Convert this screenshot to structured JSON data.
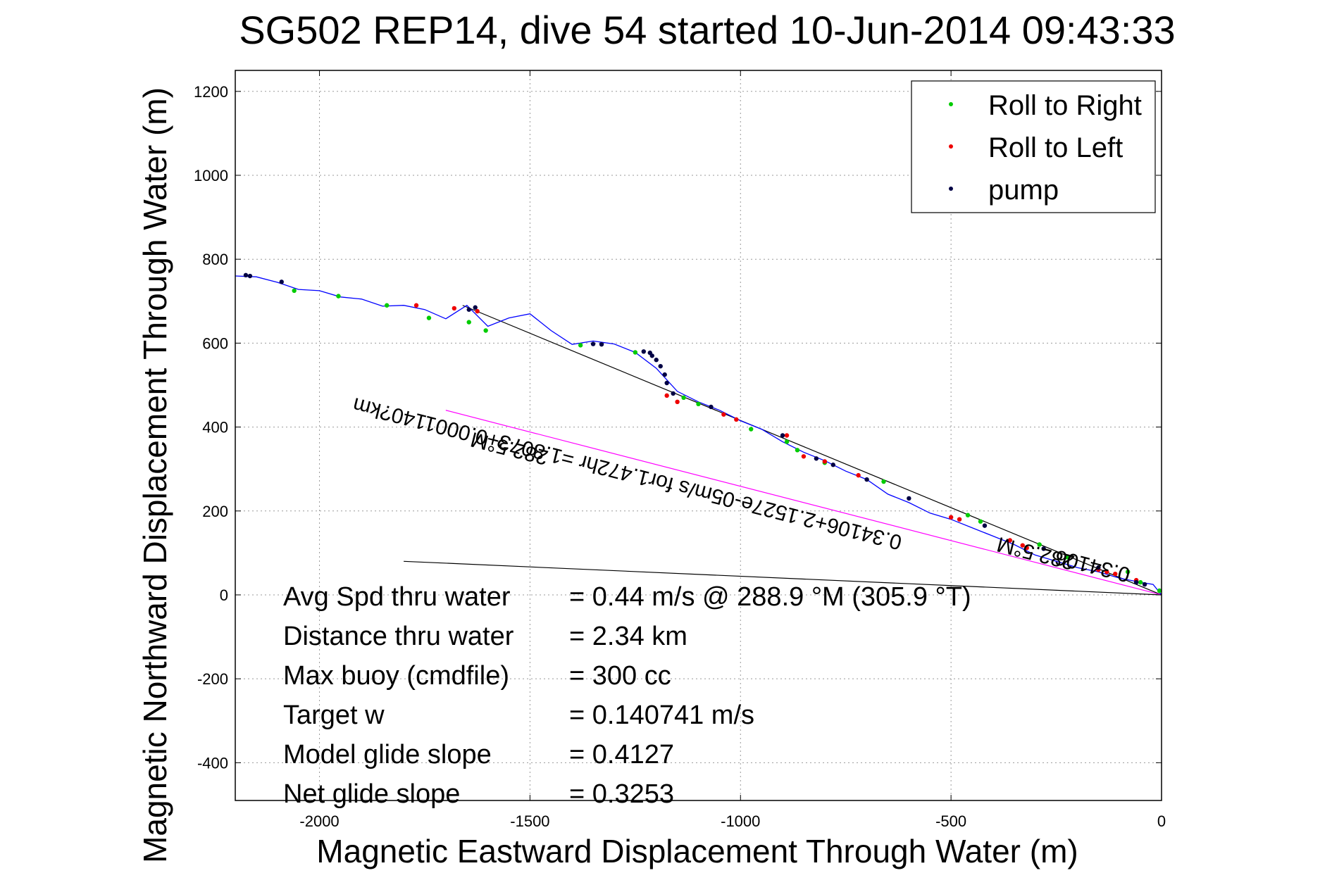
{
  "chart_data": {
    "type": "line",
    "title": "SG502 REP14, dive 54 started 10-Jun-2014 09:43:33",
    "xlabel": "Magnetic Eastward Displacement Through Water (m)",
    "ylabel": "Magnetic Northward Displacement Through Water (m)",
    "xlim": [
      -2200,
      0
    ],
    "ylim": [
      -490,
      1250
    ],
    "xticks": [
      -2000,
      -1500,
      -1000,
      -500,
      0
    ],
    "yticks": [
      1200,
      1000,
      800,
      600,
      400,
      200,
      0,
      -200,
      -400
    ],
    "grid": true,
    "legend_position": "top-right",
    "legend": [
      {
        "label": "Roll to Right",
        "color": "#00cc00"
      },
      {
        "label": "Roll to Left",
        "color": "#ee0000"
      },
      {
        "label": "pump",
        "color": "#000044"
      }
    ],
    "track": {
      "color": "#0000ff",
      "x": [
        -2200,
        -2150,
        -2100,
        -2050,
        -2000,
        -1950,
        -1900,
        -1850,
        -1800,
        -1750,
        -1700,
        -1650,
        -1600,
        -1550,
        -1500,
        -1450,
        -1400,
        -1350,
        -1300,
        -1250,
        -1200,
        -1150,
        -1100,
        -1050,
        -1000,
        -950,
        -900,
        -850,
        -800,
        -750,
        -700,
        -650,
        -600,
        -550,
        -500,
        -450,
        -400,
        -350,
        -300,
        -250,
        -200,
        -150,
        -100,
        -50,
        -20,
        0
      ],
      "y": [
        760,
        758,
        745,
        728,
        725,
        710,
        705,
        688,
        690,
        680,
        658,
        690,
        640,
        660,
        670,
        630,
        597,
        605,
        598,
        578,
        540,
        485,
        460,
        440,
        415,
        395,
        365,
        340,
        320,
        295,
        275,
        240,
        220,
        195,
        180,
        160,
        140,
        120,
        95,
        80,
        65,
        55,
        40,
        30,
        25,
        0
      ]
    },
    "roll_right": {
      "x": [
        -2060,
        -1955,
        -1840,
        -1740,
        -1645,
        -1605,
        -1380,
        -1250,
        -1135,
        -1100,
        -975,
        -890,
        -865,
        -800,
        -660,
        -460,
        -430,
        -290,
        -225,
        -80,
        -50,
        -5
      ],
      "y": [
        725,
        712,
        690,
        660,
        650,
        630,
        595,
        578,
        470,
        455,
        395,
        365,
        345,
        315,
        270,
        190,
        175,
        120,
        90,
        55,
        30,
        10
      ]
    },
    "roll_left": {
      "x": [
        -1770,
        -1680,
        -1625,
        -1175,
        -1150,
        -1040,
        -1010,
        -890,
        -850,
        -800,
        -720,
        -500,
        -480,
        -360,
        -330,
        -320,
        -150,
        -130,
        -110,
        -60
      ],
      "y": [
        690,
        683,
        676,
        475,
        460,
        430,
        418,
        380,
        330,
        318,
        285,
        185,
        180,
        130,
        118,
        112,
        60,
        55,
        50,
        35
      ]
    },
    "pump": {
      "x": [
        -2175,
        -2165,
        -2090,
        -1645,
        -1630,
        -1350,
        -1330,
        -1230,
        -1215,
        -1210,
        -1200,
        -1190,
        -1180,
        -1175,
        -1160,
        -1070,
        -900,
        -820,
        -780,
        -700,
        -600,
        -420,
        -280,
        -150,
        -60,
        -40
      ],
      "y": [
        762,
        760,
        746,
        680,
        685,
        598,
        597,
        580,
        577,
        570,
        560,
        545,
        525,
        505,
        480,
        448,
        380,
        325,
        310,
        275,
        230,
        165,
        110,
        65,
        30,
        25
      ]
    },
    "reference_lines": [
      {
        "name": "upper",
        "color": "#000000",
        "x": [
          -1660,
          0
        ],
        "y": [
          690,
          0
        ]
      },
      {
        "name": "lower",
        "color": "#000000",
        "x": [
          -1800,
          0
        ],
        "y": [
          80,
          0
        ]
      },
      {
        "name": "current",
        "color": "#ff00ff",
        "x": [
          -1700,
          0
        ],
        "y": [
          440,
          0
        ]
      }
    ],
    "annotations": [
      {
        "text": "0.34106+2.1527e-05m/s for1.472hr =1.8073+0.0001140?km",
        "x": -1265,
        "y": 305,
        "rotation": 194.2
      },
      {
        "text": "282.5°M",
        "x": -1545,
        "y": 365,
        "rotation": 194.2
      },
      {
        "text": "0.34106",
        "x": -160,
        "y": 85,
        "rotation": 194.2
      },
      {
        "text": "282.5°M",
        "x": -295,
        "y": 115,
        "rotation": 194.2
      }
    ],
    "stats": [
      {
        "label": "Avg Spd thru water",
        "value": "=  0.44 m/s @ 288.9 °M (305.9 °T)"
      },
      {
        "label": "Distance thru water",
        "value": "=  2.34 km"
      },
      {
        "label": "Max buoy (cmdfile)",
        "value": "= 300 cc"
      },
      {
        "label": "Target w",
        "value": "= 0.140741 m/s"
      },
      {
        "label": "Model glide slope",
        "value": "= 0.4127"
      },
      {
        "label": "Net glide slope",
        "value": "= 0.3253"
      }
    ]
  }
}
